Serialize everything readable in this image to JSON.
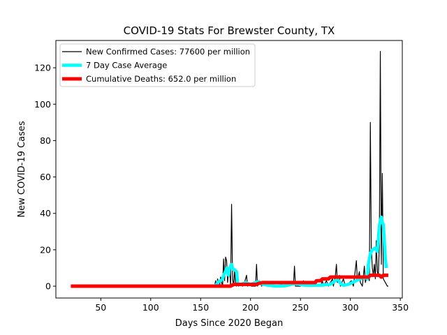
{
  "chart_data": {
    "type": "line",
    "title": "COVID-19 Stats For Brewster County, TX",
    "xlabel": "Days Since 2020 Began",
    "ylabel": "New COVID-19 Cases",
    "xlim": [
      5,
      352
    ],
    "ylim": [
      -6.5,
      135
    ],
    "xticks": [
      50,
      100,
      150,
      200,
      250,
      300,
      350
    ],
    "yticks": [
      0,
      20,
      40,
      60,
      80,
      100,
      120
    ],
    "grid": false,
    "legend_position": "top-left",
    "series": [
      {
        "name": "New Confirmed Cases: 77600 per million",
        "color": "#000000",
        "points": [
          [
            20,
            0
          ],
          [
            164,
            0
          ],
          [
            165,
            3
          ],
          [
            166,
            0
          ],
          [
            167,
            4
          ],
          [
            168,
            1
          ],
          [
            169,
            0
          ],
          [
            170,
            5
          ],
          [
            171,
            2
          ],
          [
            172,
            0
          ],
          [
            173,
            15
          ],
          [
            174,
            3
          ],
          [
            175,
            16
          ],
          [
            176,
            14
          ],
          [
            177,
            2
          ],
          [
            178,
            8
          ],
          [
            179,
            10
          ],
          [
            180,
            0
          ],
          [
            181,
            45
          ],
          [
            182,
            4
          ],
          [
            183,
            0
          ],
          [
            184,
            9
          ],
          [
            185,
            1
          ],
          [
            186,
            0
          ],
          [
            187,
            3
          ],
          [
            188,
            0
          ],
          [
            190,
            1
          ],
          [
            192,
            0
          ],
          [
            194,
            2
          ],
          [
            196,
            6
          ],
          [
            197,
            0
          ],
          [
            199,
            1
          ],
          [
            201,
            0
          ],
          [
            203,
            0
          ],
          [
            205,
            0
          ],
          [
            206,
            12
          ],
          [
            207,
            0
          ],
          [
            209,
            3
          ],
          [
            211,
            0
          ],
          [
            215,
            2
          ],
          [
            217,
            0
          ],
          [
            221,
            1
          ],
          [
            223,
            0
          ],
          [
            227,
            0
          ],
          [
            231,
            1
          ],
          [
            233,
            0
          ],
          [
            238,
            0
          ],
          [
            240,
            2
          ],
          [
            243,
            1
          ],
          [
            244,
            11
          ],
          [
            245,
            0
          ],
          [
            250,
            0
          ],
          [
            253,
            3
          ],
          [
            254,
            0
          ],
          [
            258,
            1
          ],
          [
            260,
            0
          ],
          [
            263,
            2
          ],
          [
            265,
            0
          ],
          [
            270,
            0
          ],
          [
            272,
            3
          ],
          [
            273,
            0
          ],
          [
            276,
            3
          ],
          [
            278,
            0
          ],
          [
            282,
            4
          ],
          [
            283,
            0
          ],
          [
            285,
            6
          ],
          [
            286,
            12
          ],
          [
            287,
            2
          ],
          [
            289,
            6
          ],
          [
            290,
            0
          ],
          [
            293,
            4
          ],
          [
            295,
            0
          ],
          [
            299,
            2
          ],
          [
            301,
            3
          ],
          [
            303,
            0
          ],
          [
            306,
            14
          ],
          [
            307,
            3
          ],
          [
            309,
            8
          ],
          [
            310,
            2
          ],
          [
            312,
            0
          ],
          [
            314,
            11
          ],
          [
            315,
            2
          ],
          [
            317,
            6
          ],
          [
            318,
            5
          ],
          [
            319,
            3
          ],
          [
            320,
            90
          ],
          [
            321,
            20
          ],
          [
            322,
            10
          ],
          [
            323,
            6
          ],
          [
            324,
            12
          ],
          [
            325,
            4
          ],
          [
            326,
            25
          ],
          [
            327,
            8
          ],
          [
            328,
            6
          ],
          [
            329,
            22
          ],
          [
            330,
            129
          ],
          [
            331,
            12
          ],
          [
            332,
            62
          ],
          [
            333,
            4
          ],
          [
            334,
            3
          ],
          [
            335,
            2
          ],
          [
            336,
            1
          ],
          [
            337,
            0
          ],
          [
            338,
            0
          ]
        ]
      },
      {
        "name": "7 Day Case Average",
        "color": "#00ffff",
        "points": [
          [
            164,
            0
          ],
          [
            166,
            1
          ],
          [
            168,
            2.5
          ],
          [
            170,
            3
          ],
          [
            172,
            4
          ],
          [
            173,
            6
          ],
          [
            175,
            8
          ],
          [
            176,
            10
          ],
          [
            177,
            8
          ],
          [
            178,
            6
          ],
          [
            179,
            10
          ],
          [
            180,
            11
          ],
          [
            181,
            12
          ],
          [
            182,
            10
          ],
          [
            183,
            9
          ],
          [
            184,
            9
          ],
          [
            185,
            8.5
          ],
          [
            186,
            8
          ],
          [
            187,
            2
          ],
          [
            188,
            1
          ],
          [
            190,
            1
          ],
          [
            195,
            2
          ],
          [
            200,
            1
          ],
          [
            205,
            2
          ],
          [
            208,
            2.5
          ],
          [
            212,
            1
          ],
          [
            218,
            0.5
          ],
          [
            225,
            0
          ],
          [
            235,
            0.2
          ],
          [
            244,
            1.5
          ],
          [
            248,
            1
          ],
          [
            255,
            0.5
          ],
          [
            262,
            0.5
          ],
          [
            270,
            0.5
          ],
          [
            280,
            1
          ],
          [
            285,
            3
          ],
          [
            287,
            4
          ],
          [
            289,
            2.5
          ],
          [
            291,
            1
          ],
          [
            293,
            0.5
          ],
          [
            298,
            1
          ],
          [
            302,
            2
          ],
          [
            306,
            3
          ],
          [
            310,
            4
          ],
          [
            314,
            5
          ],
          [
            317,
            4
          ],
          [
            318,
            12
          ],
          [
            320,
            18
          ],
          [
            322,
            20
          ],
          [
            325,
            21
          ],
          [
            327,
            19
          ],
          [
            329,
            33
          ],
          [
            330,
            36
          ],
          [
            331,
            38
          ],
          [
            332,
            35
          ],
          [
            333,
            34
          ],
          [
            334,
            25
          ],
          [
            335,
            15
          ],
          [
            336,
            10
          ]
        ]
      },
      {
        "name": "Cumulative Deaths: 652.0 per million",
        "color": "#ff0000",
        "points": [
          [
            20,
            0
          ],
          [
            180,
            0
          ],
          [
            183,
            1
          ],
          [
            190,
            1
          ],
          [
            206,
            1
          ],
          [
            208,
            1.5
          ],
          [
            212,
            2
          ],
          [
            265,
            2
          ],
          [
            266,
            3
          ],
          [
            270,
            3
          ],
          [
            272,
            4
          ],
          [
            278,
            4
          ],
          [
            280,
            5
          ],
          [
            315,
            5
          ],
          [
            318,
            5
          ],
          [
            320,
            6
          ],
          [
            325,
            6
          ],
          [
            329,
            6
          ],
          [
            331,
            5
          ],
          [
            333,
            6
          ],
          [
            338,
            6
          ]
        ]
      }
    ]
  }
}
